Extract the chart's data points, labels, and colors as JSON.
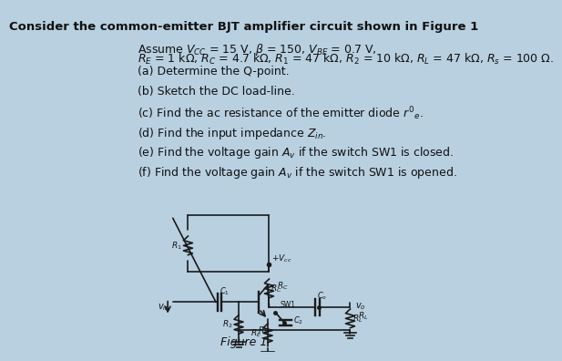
{
  "title": "Consider the common-emitter BJT amplifier circuit shown in Figure 1",
  "assume_line1": "Assume $V_{CC}$ = 15 V, $\\beta$ = 150, $V_{BE}$ = 0.7 V,",
  "assume_line2": "$R_E$ = 1 k$\\Omega$, $R_C$ = 4.7 k$\\Omega$, $R_1$ = 47 k$\\Omega$, $R_2$ = 10 k$\\Omega$, $R_L$ = 47 k$\\Omega$, $R_s$ = 100 $\\Omega$.",
  "questions": [
    "(a) Determine the Q-point.",
    "(b) Sketch the DC load-line.",
    "(c) Find the ac resistance of the emitter diode $r'_e$.",
    "(d) Find the input impedance $Z_{in}$.",
    "(e) Find the voltage gain $A_v$ if the switch SW1 is closed.",
    "(f) Find the voltage gain $A_v$ if the switch SW1 is opened."
  ],
  "figure_label": "Figure 1",
  "bg_color": "#b8d0e0",
  "text_color": "#111111",
  "title_fontsize": 9.5,
  "body_fontsize": 9.0,
  "question_fontsize": 9.0
}
